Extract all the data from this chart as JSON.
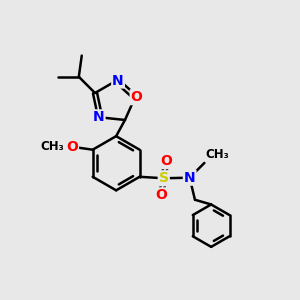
{
  "bg_color": "#e8e8e8",
  "bond_color": "#000000",
  "bond_width": 1.8,
  "atom_colors": {
    "N": "#0000ff",
    "O": "#ff0000",
    "S": "#cccc00",
    "C": "#000000"
  },
  "font_size": 10,
  "figsize": [
    3.0,
    3.0
  ],
  "dpi": 100,
  "xlim": [
    0,
    10
  ],
  "ylim": [
    0,
    10
  ]
}
